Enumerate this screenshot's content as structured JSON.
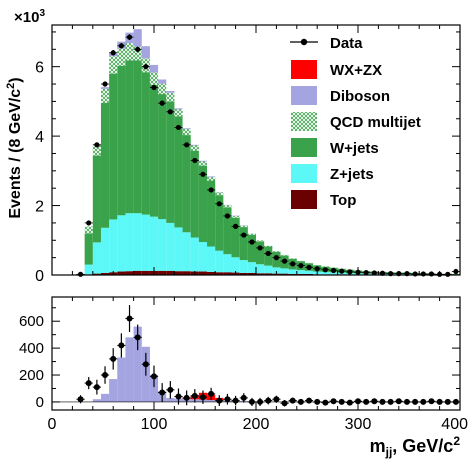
{
  "chart_data": [
    {
      "type": "bar",
      "stacked": true,
      "bin_width": 8,
      "x_start": 32,
      "xlim": [
        0,
        400
      ],
      "ylim": [
        0,
        7.2
      ],
      "y_multiplier_label": "×10",
      "y_multiplier_exp": "3",
      "ylabel": "Events / (8 GeV/c",
      "ylabel_sup": "2",
      "ylabel_end": ")",
      "y_ticks": [
        "0",
        "2",
        "4",
        "6"
      ],
      "legend_position": "top-right",
      "legend": [
        {
          "label": "Data",
          "kind": "marker"
        },
        {
          "label": "WX+ZX",
          "kind": "box"
        },
        {
          "label": "Diboson",
          "kind": "box"
        },
        {
          "label": "QCD multijet",
          "kind": "hatch"
        },
        {
          "label": "W+jets",
          "kind": "box"
        },
        {
          "label": "Z+jets",
          "kind": "box"
        },
        {
          "label": "Top",
          "kind": "box"
        }
      ],
      "colors": {
        "top": "#6b0000",
        "zjets": "#5cf7f7",
        "wjets": "#3aa24a",
        "qcd": "#3aa24a",
        "diboson": "#a4a4e0",
        "wxzx": "#ff0000",
        "data": "#000000"
      },
      "series": [
        {
          "name": "Top",
          "values": [
            0.02,
            0.04,
            0.06,
            0.08,
            0.1,
            0.11,
            0.12,
            0.12,
            0.12,
            0.12,
            0.12,
            0.11,
            0.11,
            0.1,
            0.1,
            0.09,
            0.08,
            0.08,
            0.07,
            0.06,
            0.06,
            0.05,
            0.05,
            0.04,
            0.04,
            0.03,
            0.03,
            0.03,
            0.02,
            0.02,
            0.02,
            0.02,
            0.01,
            0.01,
            0.01,
            0.01,
            0.01,
            0.01,
            0.01,
            0.01,
            0.01,
            0.0,
            0.0,
            0.0,
            0.0,
            0.0
          ]
        },
        {
          "name": "Z+jets",
          "values": [
            0.28,
            0.9,
            1.3,
            1.52,
            1.62,
            1.67,
            1.66,
            1.62,
            1.56,
            1.49,
            1.38,
            1.26,
            1.12,
            0.98,
            0.85,
            0.73,
            0.62,
            0.52,
            0.44,
            0.37,
            0.31,
            0.26,
            0.22,
            0.18,
            0.15,
            0.13,
            0.11,
            0.09,
            0.08,
            0.07,
            0.06,
            0.05,
            0.04,
            0.04,
            0.03,
            0.03,
            0.03,
            0.02,
            0.02,
            0.02,
            0.02,
            0.02,
            0.01,
            0.01,
            0.01,
            0.01
          ]
        },
        {
          "name": "W+jets",
          "values": [
            0.9,
            2.5,
            3.6,
            4.2,
            4.3,
            4.4,
            4.4,
            4.1,
            3.8,
            3.6,
            3.5,
            3.2,
            2.8,
            2.5,
            2.2,
            1.9,
            1.6,
            1.35,
            1.14,
            0.95,
            0.79,
            0.66,
            0.55,
            0.45,
            0.37,
            0.31,
            0.26,
            0.22,
            0.18,
            0.15,
            0.13,
            0.11,
            0.1,
            0.08,
            0.07,
            0.06,
            0.05,
            0.05,
            0.04,
            0.04,
            0.03,
            0.03,
            0.03,
            0.02,
            0.02,
            0.02
          ]
        },
        {
          "name": "QCD multijet",
          "values": [
            0.2,
            0.3,
            0.4,
            0.5,
            0.5,
            0.5,
            0.4,
            0.4,
            0.35,
            0.3,
            0.25,
            0.2,
            0.18,
            0.15,
            0.12,
            0.1,
            0.08,
            0.06,
            0.05,
            0.04,
            0.03,
            0.03,
            0.02,
            0.02,
            0.02,
            0.01,
            0.01,
            0.01,
            0.01,
            0.01,
            0.01,
            0.01,
            0.01,
            0.0,
            0.0,
            0.0,
            0.0,
            0.0,
            0.0,
            0.0,
            0.0,
            0.0,
            0.0,
            0.0,
            0.0,
            0.0
          ]
        },
        {
          "name": "Diboson",
          "values": [
            0.0,
            0.0,
            0.05,
            0.1,
            0.2,
            0.3,
            0.5,
            0.35,
            0.22,
            0.12,
            0.05,
            0.03,
            0.02,
            0.02,
            0.02,
            0.02,
            0.01,
            0.01,
            0.01,
            0.01,
            0.0,
            0.0,
            0.0,
            0.0,
            0.0,
            0.0,
            0.0,
            0.0,
            0.0,
            0.0,
            0.0,
            0.0,
            0.0,
            0.0,
            0.0,
            0.0,
            0.0,
            0.0,
            0.0,
            0.0,
            0.0,
            0.0,
            0.0,
            0.0,
            0.0,
            0.0
          ]
        },
        {
          "name": "WX+ZX",
          "values": [
            0,
            0,
            0,
            0,
            0,
            0,
            0,
            0,
            0,
            0,
            0,
            0,
            0,
            0,
            0,
            0,
            0,
            0,
            0,
            0,
            0,
            0,
            0,
            0,
            0,
            0,
            0,
            0,
            0,
            0,
            0,
            0,
            0,
            0,
            0,
            0,
            0,
            0,
            0,
            0,
            0,
            0,
            0,
            0,
            0,
            0
          ]
        }
      ],
      "data_points": {
        "name": "Data",
        "x_leading": [
          28
        ],
        "y_leading": [
          0.02
        ],
        "values": [
          1.5,
          3.75,
          5.5,
          6.4,
          6.6,
          6.85,
          6.5,
          6.0,
          5.4,
          4.95,
          4.7,
          4.25,
          3.75,
          3.3,
          2.9,
          2.45,
          2.05,
          1.7,
          1.4,
          1.15,
          0.95,
          0.78,
          0.62,
          0.5,
          0.4,
          0.32,
          0.27,
          0.22,
          0.18,
          0.15,
          0.13,
          0.11,
          0.09,
          0.08,
          0.07,
          0.06,
          0.05,
          0.04,
          0.04,
          0.04,
          0.03,
          0.03,
          0.03,
          0.02,
          0.02,
          0.1
        ]
      }
    },
    {
      "type": "bar",
      "stacked": true,
      "xlim": [
        0,
        400
      ],
      "ylim": [
        -60,
        780
      ],
      "x_ticks": [
        "0",
        "100",
        "200",
        "300",
        "400"
      ],
      "y_ticks": [
        "0",
        "200",
        "400",
        "600"
      ],
      "xlabel": "m",
      "xlabel_sub": "jj",
      "xlabel_end": ", GeV/c",
      "xlabel_sup": "2",
      "series": [
        {
          "name": "Diboson",
          "bin_edges": [
            40,
            48,
            56,
            64,
            72,
            80,
            88,
            96,
            104,
            112,
            120,
            128,
            136,
            144,
            152,
            160,
            168,
            176,
            184,
            192,
            200
          ],
          "values": [
            20,
            60,
            170,
            330,
            480,
            560,
            410,
            200,
            80,
            30,
            25,
            22,
            20,
            18,
            14,
            12,
            10,
            8,
            6,
            4
          ]
        },
        {
          "name": "WX+ZX",
          "bin_edges": [
            128,
            136,
            144,
            152,
            160,
            168
          ],
          "values": [
            6,
            30,
            50,
            40,
            18
          ]
        }
      ],
      "data_points": {
        "name": "Data",
        "x": [
          28,
          36,
          44,
          52,
          60,
          68,
          76,
          84,
          92,
          100,
          108,
          116,
          124,
          132,
          140,
          148,
          156,
          164,
          172,
          180,
          188,
          196,
          204,
          212,
          220,
          228,
          236,
          244,
          252,
          260,
          268,
          276,
          284,
          292,
          300,
          308,
          316,
          324,
          332,
          340,
          348,
          356,
          364,
          372,
          380,
          388,
          396
        ],
        "y": [
          20,
          140,
          110,
          200,
          320,
          420,
          620,
          480,
          280,
          190,
          70,
          90,
          40,
          30,
          45,
          35,
          60,
          10,
          20,
          10,
          30,
          0,
          0,
          10,
          20,
          -10,
          10,
          0,
          10,
          0,
          -5,
          5,
          0,
          -5,
          5,
          0,
          5,
          0,
          0,
          5,
          0,
          0,
          0,
          5,
          0,
          0,
          0
        ],
        "err": [
          30,
          45,
          55,
          65,
          80,
          90,
          100,
          95,
          85,
          80,
          70,
          65,
          60,
          55,
          50,
          50,
          45,
          40,
          40,
          35,
          35,
          30,
          30,
          28,
          26,
          24,
          22,
          20,
          20,
          18,
          18,
          16,
          16,
          15,
          14,
          14,
          13,
          12,
          12,
          12,
          11,
          11,
          10,
          10,
          10,
          10,
          10
        ]
      }
    }
  ]
}
